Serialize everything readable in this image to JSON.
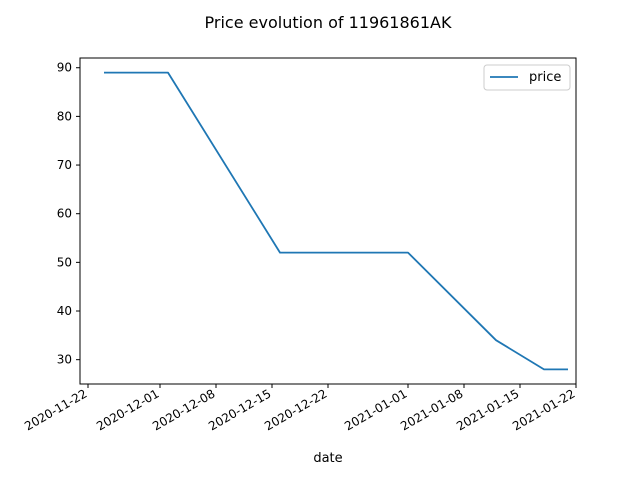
{
  "chart_data": {
    "type": "line",
    "title": "Price evolution of 11961861AK",
    "xlabel": "date",
    "ylabel": "",
    "x_tick_labels": [
      "2020-11-22",
      "2020-12-01",
      "2020-12-08",
      "2020-12-15",
      "2020-12-22",
      "2021-01-01",
      "2021-01-08",
      "2021-01-15",
      "2021-01-22"
    ],
    "y_tick_labels": [
      "30",
      "40",
      "50",
      "60",
      "70",
      "80",
      "90"
    ],
    "y_ticks": [
      30,
      40,
      50,
      60,
      70,
      80,
      90
    ],
    "ylim": [
      25,
      92
    ],
    "xlim": [
      "2020-11-21",
      "2021-01-22"
    ],
    "grid": false,
    "legend_position": "top-right",
    "series": [
      {
        "name": "price",
        "color": "#1f77b4",
        "x": [
          "2020-11-24",
          "2020-12-02",
          "2020-12-16",
          "2021-01-01",
          "2021-01-12",
          "2021-01-18",
          "2021-01-21"
        ],
        "y": [
          89,
          89,
          52,
          52,
          34,
          28,
          28
        ]
      }
    ]
  }
}
